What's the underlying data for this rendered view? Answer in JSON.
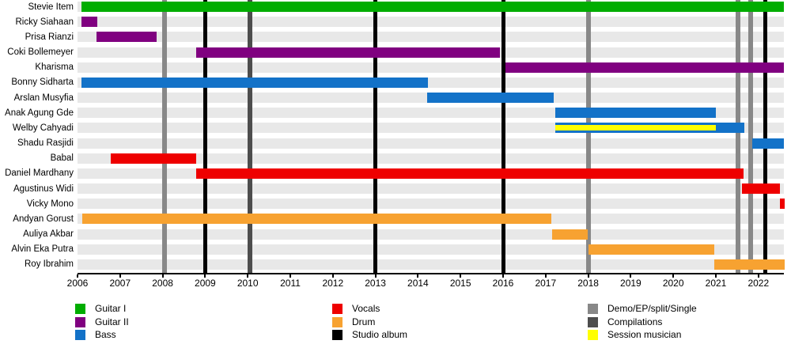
{
  "colors": {
    "guitar1": "#00ad00",
    "guitar2": "#800080",
    "bass": "#1372c8",
    "vocals": "#ee0000",
    "drum": "#f7a231",
    "album": "#000000",
    "demo": "#888888",
    "compilation": "#4d4d4d",
    "session": "#ffff00",
    "row_band": "#e8e8e8",
    "background": "#ffffff"
  },
  "chart_data": {
    "type": "timeline",
    "title": "",
    "x_axis": {
      "range": [
        2006,
        2022.6
      ],
      "ticks": [
        2006,
        2007,
        2008,
        2009,
        2010,
        2011,
        2012,
        2013,
        2014,
        2015,
        2016,
        2017,
        2018,
        2019,
        2020,
        2021,
        2022
      ],
      "grid": false
    },
    "members": [
      {
        "name": "Stevie Item",
        "role": "guitar1",
        "segments": [
          [
            2006.1,
            2022.6
          ]
        ]
      },
      {
        "name": "Ricky Siahaan",
        "role": "guitar2",
        "segments": [
          [
            2006.1,
            2006.46
          ]
        ]
      },
      {
        "name": "Prisa Rianzi",
        "role": "guitar2",
        "segments": [
          [
            2006.45,
            2007.86
          ]
        ]
      },
      {
        "name": "Coki Bollemeyer",
        "role": "guitar2",
        "segments": [
          [
            2008.79,
            2015.93
          ]
        ]
      },
      {
        "name": "Kharisma",
        "role": "guitar2",
        "segments": [
          [
            2016.05,
            2022.6
          ]
        ]
      },
      {
        "name": "Bonny Sidharta",
        "role": "bass",
        "segments": [
          [
            2006.1,
            2014.23
          ]
        ]
      },
      {
        "name": "Arslan Musyfia",
        "role": "bass",
        "segments": [
          [
            2014.22,
            2017.19
          ]
        ]
      },
      {
        "name": "Anak Agung Gde",
        "role": "bass",
        "segments": [
          [
            2017.23,
            2021.0
          ]
        ]
      },
      {
        "name": "Welby Cahyadi",
        "role": "bass",
        "segments": [
          [
            2017.23,
            2021.67
          ]
        ],
        "session_segments": [
          [
            2017.23,
            2021.0
          ]
        ]
      },
      {
        "name": "Shadu Rasjidi",
        "role": "bass",
        "segments": [
          [
            2021.85,
            2022.6
          ]
        ]
      },
      {
        "name": "Babal",
        "role": "vocals",
        "segments": [
          [
            2006.78,
            2008.79
          ]
        ]
      },
      {
        "name": "Daniel Mardhany",
        "role": "vocals",
        "segments": [
          [
            2008.79,
            2021.65
          ]
        ]
      },
      {
        "name": "Agustinus Widi",
        "role": "vocals",
        "segments": [
          [
            2021.62,
            2022.51
          ]
        ]
      },
      {
        "name": "Vicky Mono",
        "role": "vocals",
        "segments": [
          [
            2022.5,
            2022.62
          ]
        ]
      },
      {
        "name": "Andyan Gorust",
        "role": "drum",
        "segments": [
          [
            2006.11,
            2017.13
          ]
        ]
      },
      {
        "name": "Auliya Akbar",
        "role": "drum",
        "segments": [
          [
            2017.15,
            2017.99
          ]
        ]
      },
      {
        "name": "Alvin Eka Putra",
        "role": "drum",
        "segments": [
          [
            2018.01,
            2020.96
          ]
        ]
      },
      {
        "name": "Roy Ibrahim",
        "role": "drum",
        "segments": [
          [
            2020.96,
            2022.62
          ]
        ]
      }
    ],
    "release_lines": [
      {
        "year": 2008.05,
        "type": "demo"
      },
      {
        "year": 2009.0,
        "type": "album"
      },
      {
        "year": 2010.05,
        "type": "compilation"
      },
      {
        "year": 2013.0,
        "type": "album"
      },
      {
        "year": 2016.0,
        "type": "album"
      },
      {
        "year": 2018.0,
        "type": "demo"
      },
      {
        "year": 2021.52,
        "type": "demo"
      },
      {
        "year": 2021.82,
        "type": "demo"
      },
      {
        "year": 2022.17,
        "type": "album"
      }
    ],
    "legend": {
      "columns": [
        [
          {
            "key": "guitar1",
            "label": "Guitar I"
          },
          {
            "key": "guitar2",
            "label": "Guitar II"
          },
          {
            "key": "bass",
            "label": "Bass"
          }
        ],
        [
          {
            "key": "vocals",
            "label": "Vocals"
          },
          {
            "key": "drum",
            "label": "Drum"
          },
          {
            "key": "album",
            "label": "Studio album"
          }
        ],
        [
          {
            "key": "demo",
            "label": "Demo/EP/split/Single"
          },
          {
            "key": "compilation",
            "label": "Compilations"
          },
          {
            "key": "session",
            "label": "Session musician"
          }
        ]
      ]
    }
  }
}
